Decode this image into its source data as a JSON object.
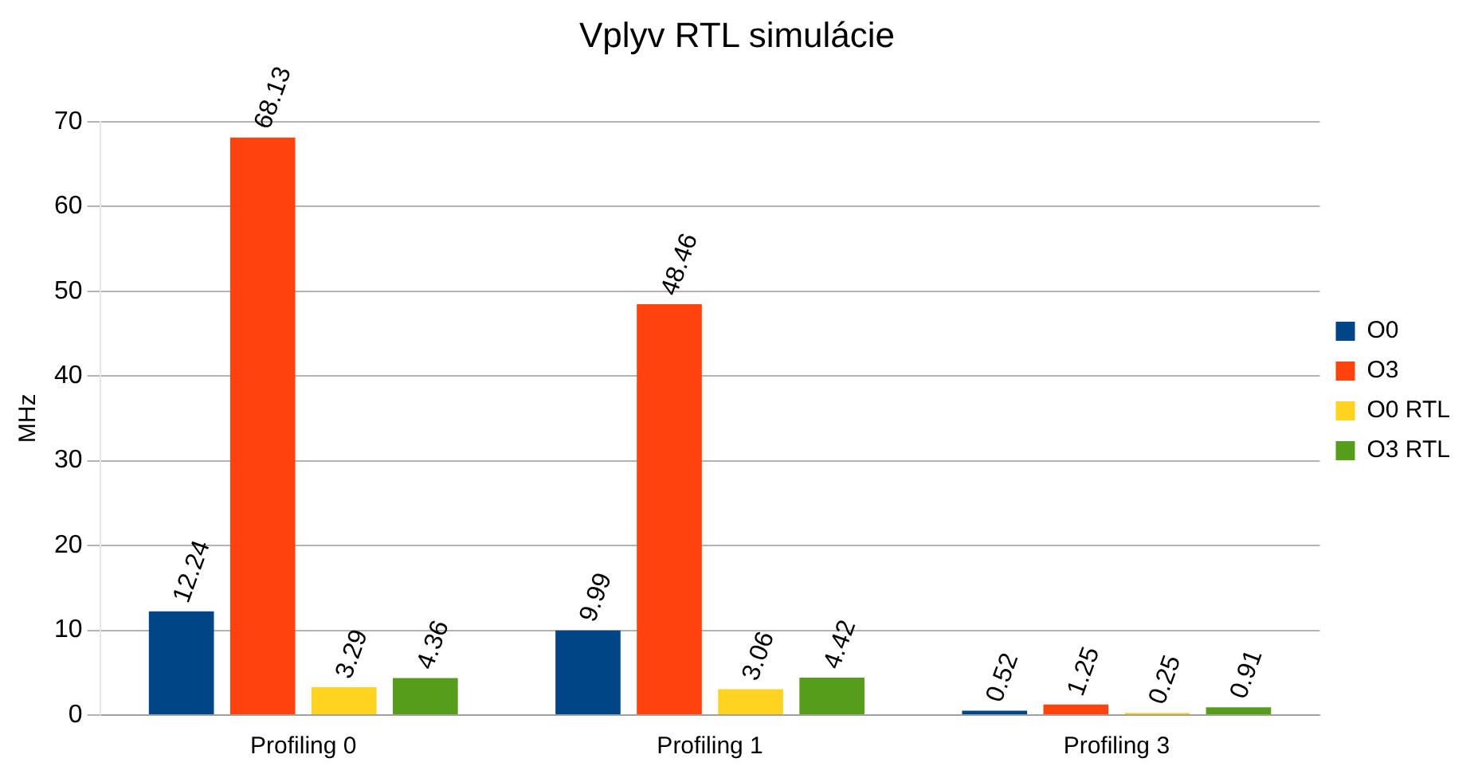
{
  "chart_data": {
    "type": "bar",
    "title": "Vplyv RTL simulácie",
    "ylabel": "MHz",
    "categories": [
      "Profiling 0",
      "Profiling 1",
      "Profiling 3"
    ],
    "series": [
      {
        "name": "O0",
        "color": "#004586",
        "values": [
          12.24,
          9.99,
          0.52
        ]
      },
      {
        "name": "O3",
        "color": "#ff420e",
        "values": [
          68.13,
          48.46,
          1.25
        ]
      },
      {
        "name": "O0 RTL",
        "color": "#ffd320",
        "values": [
          3.29,
          3.06,
          0.25
        ]
      },
      {
        "name": "O3 RTL",
        "color": "#579d1c",
        "values": [
          4.36,
          4.42,
          0.91
        ]
      }
    ],
    "ylim": [
      0,
      70
    ],
    "yticks": [
      0,
      10,
      20,
      30,
      40,
      50,
      60,
      70
    ],
    "grid": "y",
    "legend": "right",
    "data_labels": true
  }
}
